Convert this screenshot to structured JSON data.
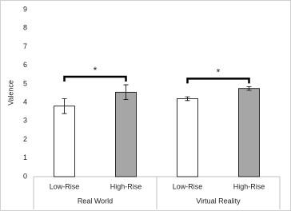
{
  "chart_data": {
    "type": "bar",
    "ylabel": "Valence",
    "categories": [
      "Low-Rise",
      "High-Rise",
      "Low-Rise",
      "High-Rise"
    ],
    "groups": [
      "Real World",
      "Virtual Reality"
    ],
    "values": [
      3.8,
      4.55,
      4.2,
      4.75
    ],
    "errors": [
      0.4,
      0.4,
      0.1,
      0.1
    ],
    "colors": [
      "#ffffff",
      "#a6a6a6",
      "#ffffff",
      "#a6a6a6"
    ],
    "ylim": [
      0,
      9
    ],
    "yticks": [
      0,
      1,
      2,
      3,
      4,
      5,
      6,
      7,
      8,
      9
    ],
    "grid": false,
    "annotations": [
      "*",
      "*"
    ]
  }
}
